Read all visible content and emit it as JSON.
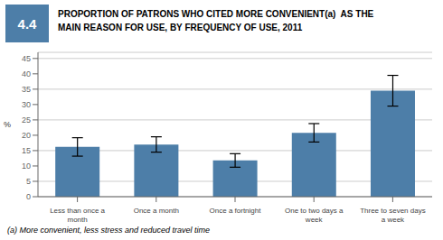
{
  "chart_data": {
    "type": "bar",
    "title": "PROPORTION OF PATRONS WHO CITED MORE CONVENIENT(a)  AS THE\nMAIN REASON FOR USE, BY FREQUENCY OF USE, 2011",
    "categories": [
      "Less than once a\nmonth",
      "Once a month",
      "Once a fortnight",
      "One to two days a\nweek",
      "Three to seven days\na week"
    ],
    "values": [
      16.2,
      17.0,
      11.8,
      20.8,
      34.5
    ],
    "errors": [
      3.0,
      2.5,
      2.2,
      3.0,
      5.0
    ],
    "color": "#4d7ea8",
    "ylabel": "%",
    "ylim": [
      0,
      47
    ],
    "yticks": [
      0,
      5,
      10,
      15,
      20,
      25,
      30,
      35,
      40,
      45
    ],
    "grid": true,
    "annotations": [
      "4.4",
      "(a) More convenient, less stress and reduced travel time"
    ]
  }
}
